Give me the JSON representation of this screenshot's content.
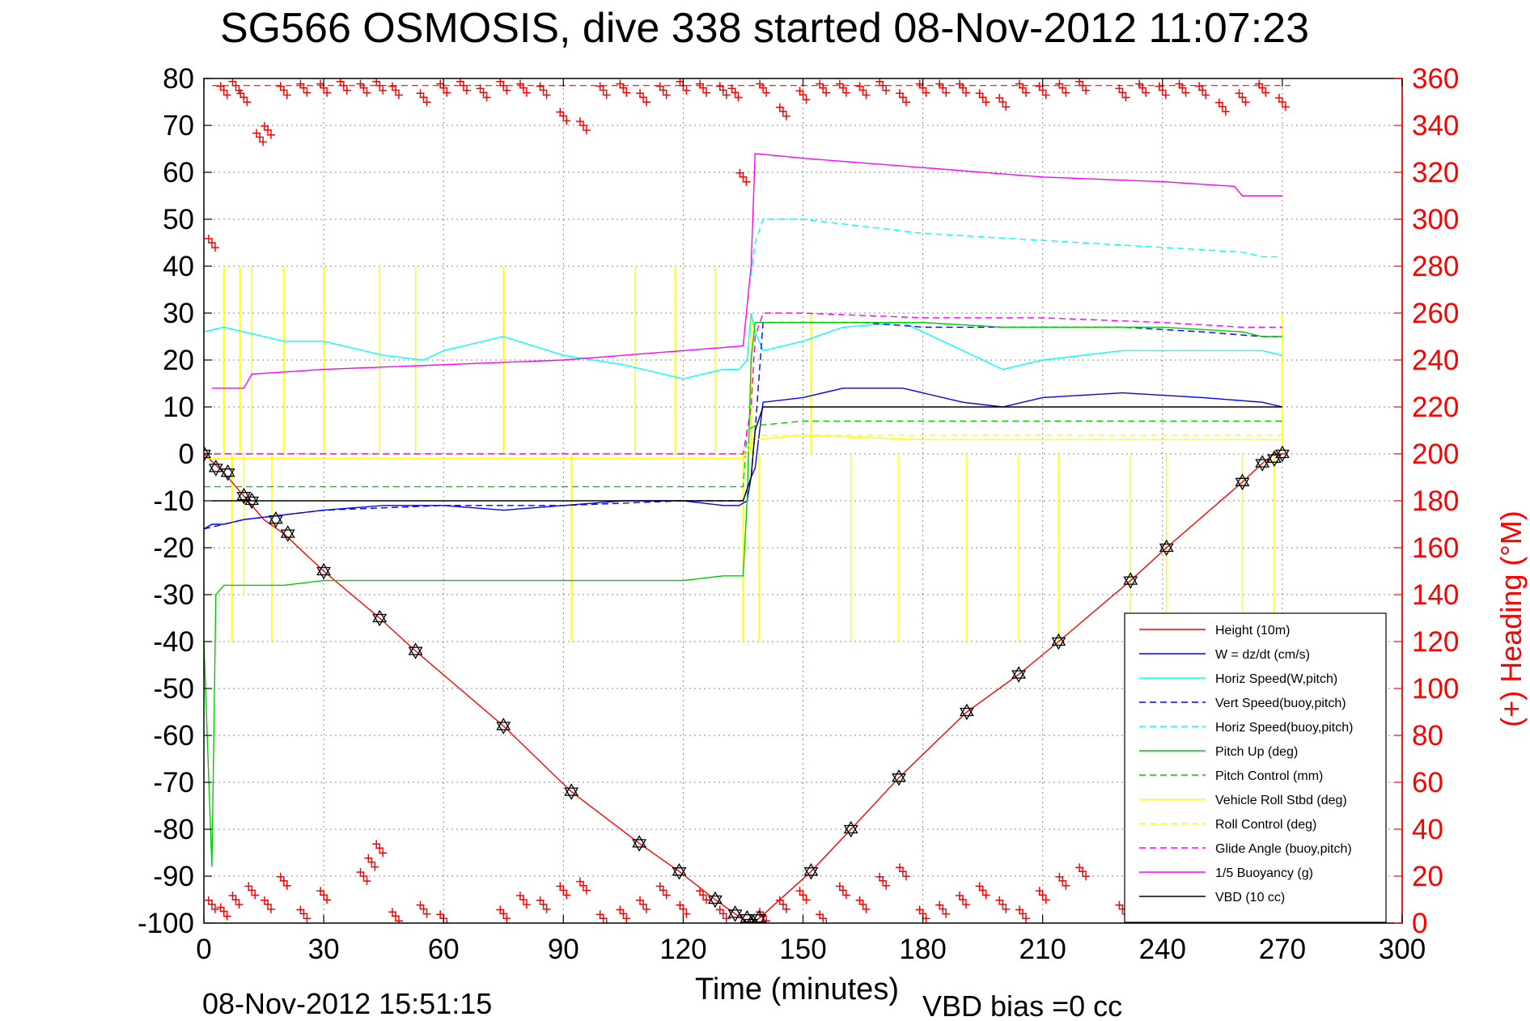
{
  "chart_data": {
    "type": "line",
    "title": "SG566 OSMOSIS, dive 338 started 08-Nov-2012 11:07:23",
    "xlabel": "Time (minutes)",
    "ylabel_right": "(+) Heading (°M)",
    "ylabel_left": "",
    "footer_left": "08-Nov-2012 15:51:15",
    "footer_right": "VBD bias =0 cc",
    "xlim": [
      0,
      300
    ],
    "ylim_left": [
      -100,
      80
    ],
    "ylim_right": [
      0,
      360
    ],
    "xticks": [
      "0",
      "30",
      "60",
      "90",
      "120",
      "150",
      "180",
      "210",
      "240",
      "270",
      "300"
    ],
    "yticks_left": [
      "80",
      "70",
      "60",
      "50",
      "40",
      "30",
      "20",
      "10",
      "0",
      "-10",
      "-20",
      "-30",
      "-40",
      "-50",
      "-60",
      "-70",
      "-80",
      "-90",
      "-100"
    ],
    "yticks_right": [
      "360",
      "340",
      "320",
      "300",
      "280",
      "260",
      "240",
      "220",
      "200",
      "180",
      "160",
      "140",
      "120",
      "100",
      "80",
      "60",
      "40",
      "20",
      "0"
    ],
    "grid": true,
    "legend_position": "bottom-right",
    "series": [
      {
        "name": "Height (10m)",
        "color": "#ff0000",
        "dash": "solid",
        "x": [
          0,
          5,
          10,
          15,
          20,
          30,
          44,
          53,
          75,
          92,
          109,
          119,
          128,
          133,
          136,
          137,
          139,
          152,
          162,
          174,
          191,
          204,
          214,
          232,
          241,
          260,
          265,
          268,
          271
        ],
        "y": [
          0,
          -4,
          -9,
          -14,
          -17,
          -25,
          -35,
          -42,
          -58,
          -72,
          -83,
          -89,
          -95,
          -98,
          -100,
          -100,
          -99,
          -89,
          -80,
          -69,
          -55,
          -47,
          -40,
          -27,
          -20,
          -6,
          -2,
          0,
          0
        ]
      },
      {
        "name": "W = dz/dt (cm/s)",
        "color": "#0000ff",
        "dash": "solid",
        "x": [
          0,
          2,
          5,
          10,
          20,
          30,
          45,
          60,
          75,
          90,
          105,
          120,
          130,
          134,
          136,
          137,
          138,
          140,
          150,
          160,
          175,
          190,
          200,
          210,
          230,
          250,
          265,
          270
        ],
        "y": [
          -16,
          -15,
          -15,
          -14,
          -13,
          -12,
          -11,
          -11,
          -12,
          -11,
          -10,
          -10,
          -11,
          -11,
          -10,
          -5,
          -3,
          11,
          12,
          14,
          14,
          11,
          10,
          12,
          13,
          12,
          11,
          10
        ]
      },
      {
        "name": "Horiz Speed(W,pitch)",
        "color": "#00ffff",
        "dash": "solid",
        "x": [
          0,
          5,
          10,
          20,
          30,
          45,
          55,
          60,
          75,
          90,
          105,
          120,
          130,
          134,
          136,
          137,
          138,
          140,
          150,
          160,
          175,
          190,
          200,
          210,
          230,
          250,
          265,
          270
        ],
        "y": [
          26,
          27,
          26,
          24,
          24,
          21,
          20,
          22,
          25,
          21,
          19,
          16,
          18,
          18,
          20,
          30,
          26,
          22,
          24,
          27,
          28,
          22,
          18,
          20,
          22,
          22,
          22,
          21
        ]
      },
      {
        "name": "Vert Speed(buoy,pitch)",
        "color": "#0000ff",
        "dash": "dashed",
        "x": [
          0,
          10,
          30,
          60,
          90,
          120,
          135,
          137,
          138,
          140,
          150,
          165,
          180,
          200,
          230,
          250,
          265,
          270
        ],
        "y": [
          -16,
          -14,
          -12,
          -11,
          -11,
          -10,
          -10,
          -5,
          5,
          28,
          28,
          28,
          27,
          27,
          27,
          26,
          25,
          25
        ]
      },
      {
        "name": "Horiz Speed(buoy,pitch)",
        "color": "#00ffff",
        "dash": "dashed",
        "x": [
          137,
          138,
          140,
          150,
          160,
          180,
          200,
          220,
          240,
          260,
          265,
          270
        ],
        "y": [
          38,
          45,
          50,
          50,
          49,
          47,
          46,
          45,
          44,
          43,
          42,
          42
        ]
      },
      {
        "name": "Pitch Up (deg)",
        "color": "#00cc00",
        "dash": "solid",
        "x": [
          0,
          2,
          3,
          5,
          10,
          20,
          30,
          45,
          60,
          75,
          90,
          105,
          120,
          130,
          134,
          135,
          136,
          137,
          138,
          140,
          150,
          160,
          180,
          200,
          220,
          240,
          260,
          265,
          270
        ],
        "y": [
          -40,
          -88,
          -30,
          -28,
          -28,
          -28,
          -27,
          -27,
          -27,
          -27,
          -27,
          -27,
          -27,
          -26,
          -26,
          -26,
          -10,
          20,
          28,
          28,
          28,
          28,
          28,
          27,
          27,
          27,
          26,
          25,
          25
        ]
      },
      {
        "name": "Pitch Control (mm)",
        "color": "#00cc00",
        "dash": "dashed",
        "x": [
          0,
          2,
          5,
          30,
          60,
          90,
          120,
          135,
          136,
          138,
          150,
          200,
          250,
          270
        ],
        "y": [
          -7,
          -7,
          -7,
          -7,
          -7,
          -7,
          -7,
          -7,
          5,
          6,
          7,
          7,
          7,
          7
        ]
      },
      {
        "name": "Vehicle Roll Stbd (deg)",
        "color": "#ffff00",
        "dash": "solid",
        "x": [
          0,
          5,
          30,
          60,
          90,
          120,
          135,
          138,
          150,
          180,
          210,
          240,
          260,
          270
        ],
        "y": [
          -1,
          -1,
          -1,
          -1,
          -1,
          -1,
          -1,
          3,
          4,
          3,
          3,
          3,
          3,
          3
        ]
      },
      {
        "name": "Roll Control (deg)",
        "color": "#ffff00",
        "dash": "dashed",
        "x": [
          0,
          30,
          60,
          90,
          120,
          135,
          138,
          150,
          180,
          210,
          240,
          270
        ],
        "y": [
          0,
          0,
          0,
          0,
          0,
          0,
          4,
          4,
          4,
          4,
          4,
          4
        ]
      },
      {
        "name": "Glide Angle (buoy,pitch)",
        "color": "#ff00ff",
        "dash": "dashed",
        "x": [
          0,
          30,
          60,
          90,
          120,
          135,
          137,
          138,
          140,
          150,
          180,
          210,
          240,
          260,
          270
        ],
        "y": [
          0,
          0,
          0,
          0,
          0,
          0,
          10,
          25,
          30,
          30,
          29,
          29,
          28,
          27,
          27
        ]
      },
      {
        "name": "1/5 Buoyancy (g)",
        "color": "#ff00ff",
        "dash": "solid",
        "x": [
          2,
          10,
          12,
          30,
          60,
          90,
          120,
          135,
          137,
          138,
          150,
          180,
          210,
          240,
          258,
          260,
          270
        ],
        "y": [
          14,
          14,
          17,
          18,
          19,
          20,
          22,
          23,
          40,
          64,
          63,
          61,
          59,
          58,
          57,
          55,
          55
        ]
      },
      {
        "name": "VBD (10 cc)",
        "color": "#000000",
        "dash": "solid",
        "x": [
          2,
          30,
          60,
          90,
          120,
          135,
          137,
          138,
          140,
          150,
          200,
          250,
          270
        ],
        "y": [
          -10,
          -10,
          -10,
          -10,
          -10,
          -10,
          -5,
          5,
          10,
          10,
          10,
          10,
          10
        ]
      }
    ],
    "heading_points_top": {
      "color": "#ff0000",
      "marker": "+",
      "x": [
        2,
        5,
        8,
        10,
        14,
        16,
        20,
        25,
        30,
        35,
        40,
        44,
        48,
        55,
        60,
        65,
        70,
        75,
        80,
        85,
        90,
        95,
        100,
        105,
        110,
        115,
        120,
        125,
        130,
        133,
        135,
        140,
        145,
        150,
        155,
        160,
        165,
        170,
        175,
        180,
        185,
        190,
        195,
        200,
        205,
        210,
        215,
        220,
        230,
        235,
        240,
        245,
        250,
        255,
        260,
        265,
        270
      ],
      "y": [
        290,
        355,
        357,
        352,
        335,
        338,
        355,
        356,
        356,
        357,
        356,
        357,
        355,
        352,
        356,
        357,
        354,
        357,
        356,
        355,
        344,
        340,
        355,
        356,
        352,
        355,
        357,
        356,
        355,
        354,
        318,
        356,
        346,
        353,
        356,
        356,
        355,
        357,
        352,
        356,
        356,
        356,
        352,
        350,
        356,
        355,
        356,
        357,
        354,
        356,
        355,
        356,
        355,
        348,
        352,
        356,
        350
      ]
    },
    "heading_points_bottom": {
      "color": "#ff0000",
      "marker": "+",
      "x": [
        2,
        5,
        8,
        12,
        16,
        20,
        25,
        30,
        40,
        42,
        44,
        48,
        55,
        60,
        75,
        80,
        85,
        90,
        95,
        100,
        105,
        110,
        115,
        120,
        125,
        130,
        140,
        145,
        150,
        155,
        160,
        165,
        170,
        175,
        180,
        185,
        190,
        195,
        200,
        205,
        210,
        215,
        220,
        230,
        235,
        240,
        245,
        250,
        255,
        260,
        265,
        270
      ],
      "y": [
        8,
        5,
        10,
        14,
        8,
        18,
        4,
        12,
        20,
        26,
        32,
        3,
        6,
        2,
        4,
        10,
        8,
        14,
        16,
        2,
        4,
        8,
        14,
        6,
        12,
        4,
        3,
        8,
        12,
        2,
        14,
        8,
        18,
        22,
        4,
        6,
        10,
        14,
        8,
        4,
        12,
        18,
        22,
        6,
        10,
        12,
        4,
        8,
        14,
        6,
        10,
        2
      ]
    },
    "markers": {
      "color": "#000000",
      "style": "hexagram",
      "x": [
        0,
        3,
        6,
        10,
        12,
        18,
        21,
        30,
        44,
        53,
        75,
        92,
        109,
        119,
        128,
        133,
        136,
        137,
        139,
        152,
        162,
        174,
        191,
        204,
        214,
        232,
        241,
        260,
        265,
        268,
        270
      ],
      "y": [
        0,
        -3,
        -4,
        -9,
        -10,
        -14,
        -17,
        -25,
        -35,
        -42,
        -58,
        -72,
        -83,
        -89,
        -95,
        -98,
        -99,
        -100,
        -99,
        -89,
        -80,
        -69,
        -55,
        -47,
        -40,
        -27,
        -20,
        -6,
        -2,
        -1,
        0
      ]
    },
    "spikes_yellow": {
      "x": [
        5,
        7,
        9,
        10,
        12,
        17,
        20,
        30,
        44,
        53,
        75,
        92,
        108,
        118,
        128,
        135,
        137,
        139,
        152,
        162,
        174,
        191,
        204,
        214,
        232,
        241,
        260,
        268,
        270
      ],
      "y": [
        40,
        -40,
        40,
        -30,
        40,
        -40,
        40,
        40,
        40,
        40,
        40,
        -40,
        40,
        40,
        40,
        -40,
        30,
        -40,
        30,
        -40,
        -40,
        -40,
        -40,
        -40,
        -40,
        -40,
        -40,
        -40,
        30
      ]
    }
  }
}
